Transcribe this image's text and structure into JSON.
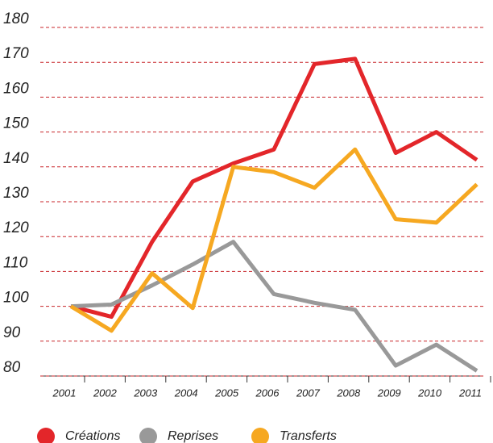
{
  "chart_data": {
    "type": "line",
    "categories": [
      "2001",
      "2002",
      "2003",
      "2004",
      "2005",
      "2006",
      "2007",
      "2008",
      "2009",
      "2010",
      "2011"
    ],
    "series": [
      {
        "name": "Créations",
        "color": "#e3262a",
        "values": [
          100,
          97,
          118.5,
          135.8,
          141,
          145,
          169.5,
          171,
          144,
          150,
          142
        ]
      },
      {
        "name": "Reprises",
        "color": "#999999",
        "values": [
          100,
          100.5,
          106,
          112,
          118.5,
          103.5,
          101,
          99,
          83,
          89,
          81.5
        ]
      },
      {
        "name": "Transferts",
        "color": "#f6a821",
        "values": [
          100,
          93,
          109.5,
          99.5,
          140,
          138.5,
          134,
          145,
          125,
          124,
          135
        ]
      }
    ],
    "ylim": [
      80,
      180
    ],
    "yticks": [
      80,
      90,
      100,
      110,
      120,
      130,
      140,
      150,
      160,
      170,
      180
    ],
    "grid": true,
    "legend": "bottom"
  }
}
